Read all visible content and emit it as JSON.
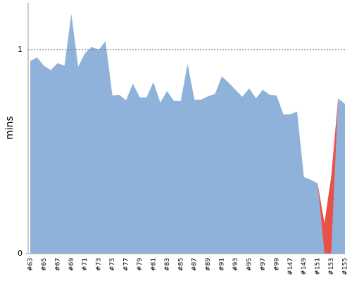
{
  "chart_data": {
    "type": "stacked_area",
    "y_label": "mins",
    "categories": [
      "#63",
      null,
      "#65",
      null,
      "#67",
      null,
      "#69",
      null,
      "#71",
      null,
      "#73",
      null,
      "#75",
      null,
      "#77",
      null,
      "#79",
      null,
      "#81",
      null,
      "#83",
      null,
      "#85",
      null,
      "#87",
      null,
      "#89",
      null,
      "#91",
      null,
      "#93",
      null,
      "#95",
      null,
      "#97",
      null,
      "#99",
      null,
      "#147",
      null,
      "#149",
      null,
      "#151",
      null,
      "#153",
      null,
      "#155"
    ],
    "series": [
      {
        "color": "#8fb2db",
        "values": [
          0.945,
          0.962,
          0.921,
          0.9,
          0.934,
          0.921,
          1.176,
          0.917,
          0.983,
          1.014,
          1.0,
          1.041,
          0.776,
          0.779,
          0.752,
          0.834,
          0.766,
          0.766,
          0.841,
          0.741,
          0.797,
          0.748,
          0.748,
          0.931,
          0.755,
          0.755,
          0.772,
          0.783,
          0.869,
          0.838,
          0.803,
          0.769,
          0.81,
          0.762,
          0.803,
          0.779,
          0.776,
          0.683,
          0.683,
          0.697,
          0.376,
          0.362,
          0.345,
          0,
          0,
          0.762,
          0.734
        ]
      },
      {
        "color": "#e8514a",
        "values": [
          0,
          0,
          0,
          0,
          0,
          0,
          0,
          0,
          0,
          0,
          0,
          0,
          0,
          0,
          0,
          0,
          0,
          0,
          0,
          0,
          0,
          0,
          0,
          0,
          0,
          0,
          0,
          0,
          0,
          0,
          0,
          0,
          0,
          0,
          0,
          0,
          0,
          0,
          0,
          0,
          0,
          0,
          0,
          0.15,
          0.38,
          0,
          0
        ]
      }
    ],
    "ylim": [
      0,
      1.23
    ],
    "yticks": [
      0,
      1
    ],
    "grid": true
  }
}
